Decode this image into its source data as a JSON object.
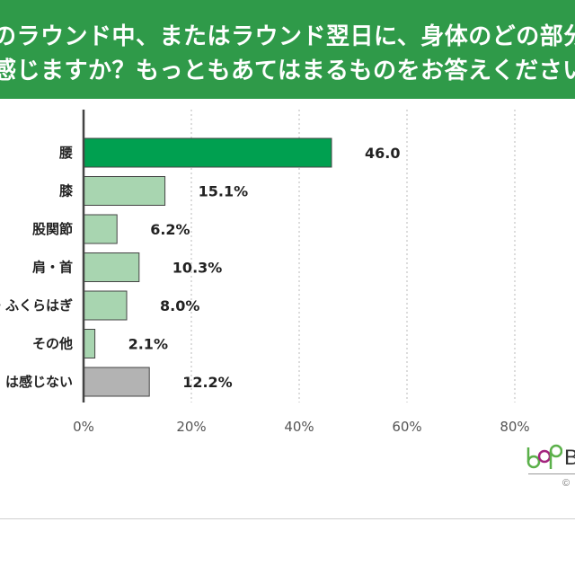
{
  "header": {
    "title_line_1": "のラウンド中、またはラウンド翌日に、身体のどの部分に",
    "title_line_2": "感じますか？もっともあてはまるものをお答えください。"
  },
  "chart_data": {
    "type": "bar",
    "orientation": "horizontal",
    "categories": [
      "腰",
      "膝",
      "股関節",
      "肩・首",
      "・ふくらはぎ",
      "その他",
      "は感じない"
    ],
    "values": [
      46.0,
      15.1,
      6.2,
      10.3,
      8.0,
      2.1,
      12.2
    ],
    "value_labels": [
      "46.0",
      "15.1%",
      "6.2%",
      "10.3%",
      "8.0%",
      "2.1%",
      "12.2%"
    ],
    "bar_colors": [
      "#00a050",
      "#a8d5b0",
      "#a8d5b0",
      "#a8d5b0",
      "#a8d5b0",
      "#a8d5b0",
      "#b3b3b3"
    ],
    "x_ticks": [
      0,
      20,
      40,
      60,
      80
    ],
    "x_tick_labels": [
      "0%",
      "20%",
      "40%",
      "60%",
      "80%"
    ],
    "xlim": [
      0,
      100
    ],
    "grid": "vertical-dotted"
  },
  "footer": {
    "logo_text": "B",
    "copyright_text": "©"
  },
  "colors": {
    "banner": "#2f9a49",
    "logo_green": "#5bb04a",
    "logo_magenta": "#a3247e"
  }
}
